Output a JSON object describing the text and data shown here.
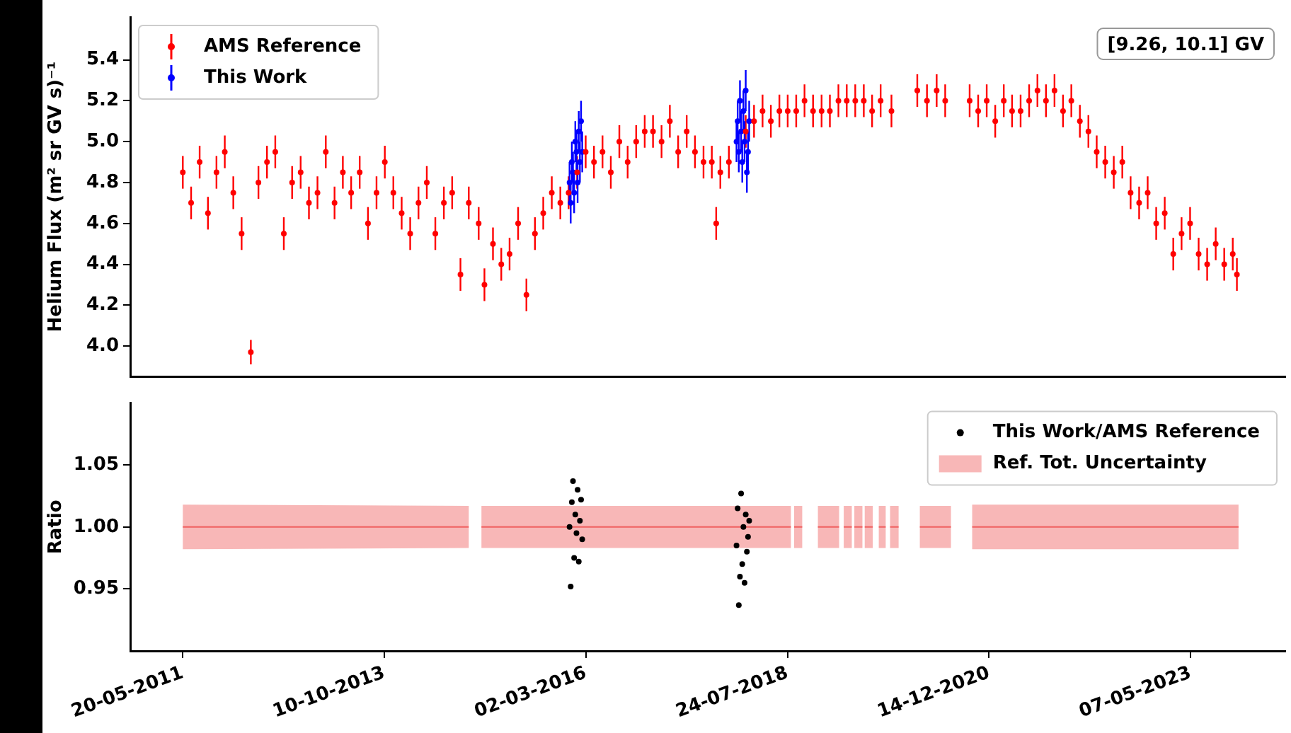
{
  "chart_data": [
    {
      "type": "scatter",
      "ylabel": "Helium Flux (m² sr GV s)⁻¹",
      "annotations": [
        "[9.26, 10.1] GV"
      ],
      "legend": "top left",
      "marker": "circle",
      "tick_labels": "y",
      "xlim": [
        "2010-10-04",
        "2024-06-21"
      ],
      "ylim": [
        3.85,
        5.61
      ],
      "yticks": [
        {
          "value": 4.0,
          "label": "4.0"
        },
        4.2,
        4.4,
        4.6,
        4.8,
        {
          "value": 5.0,
          "label": "5.0"
        },
        5.2,
        5.4
      ],
      "series": [
        {
          "name": "AMS Reference",
          "color": "#ff0000",
          "x": [
            "2011-05-20",
            "2011-06-25",
            "2011-08-01",
            "2011-09-06",
            "2011-10-13",
            "2011-11-18",
            "2011-12-25",
            "2012-01-30",
            "2012-03-10",
            "2012-04-12",
            "2012-05-19",
            "2012-06-24",
            "2012-07-31",
            "2012-09-05",
            "2012-10-12",
            "2012-11-17",
            "2012-12-24",
            "2013-01-29",
            "2013-03-08",
            "2013-04-13",
            "2013-05-19",
            "2013-06-25",
            "2013-07-31",
            "2013-09-06",
            "2013-10-12",
            "2013-11-18",
            "2013-12-24",
            "2014-01-30",
            "2014-03-07",
            "2014-04-12",
            "2014-05-19",
            "2014-06-25",
            "2014-07-31",
            "2014-09-05",
            "2014-10-11",
            "2014-11-01",
            "2014-11-23",
            "2014-12-18",
            "2015-01-24",
            "2015-03-01",
            "2015-04-06",
            "2015-05-13",
            "2015-06-18",
            "2015-07-25",
            "2015-08-30",
            "2015-10-06",
            "2015-11-12",
            "2015-12-18",
            "2016-01-24",
            "2016-03-01",
            "2016-04-06",
            "2016-05-13",
            "2016-06-18",
            "2016-07-25",
            "2016-08-30",
            "2016-10-06",
            "2016-11-12",
            "2016-12-18",
            "2017-01-24",
            "2017-03-01",
            "2017-04-06",
            "2017-05-13",
            "2017-06-18",
            "2017-07-25",
            "2017-08-30",
            "2017-09-18",
            "2017-10-06",
            "2017-11-12",
            "2017-12-18",
            "2018-01-24",
            "2018-03-01",
            "2018-04-07",
            "2018-05-13",
            "2018-06-19",
            "2018-07-25",
            "2018-08-31",
            "2018-10-06",
            "2018-11-12",
            "2018-12-19",
            "2019-01-24",
            "2019-03-02",
            "2019-04-07",
            "2019-05-14",
            "2019-06-20",
            "2019-07-26",
            "2019-09-01",
            "2019-10-18",
            "2019-12-01",
            "2020-02-07",
            "2020-03-20",
            "2020-05-01",
            "2020-06-07",
            "2020-08-01",
            "2020-09-21",
            "2020-10-28",
            "2020-12-04",
            "2021-01-10",
            "2021-02-16",
            "2021-03-24",
            "2021-04-30",
            "2021-06-06",
            "2021-07-12",
            "2021-08-18",
            "2021-09-24",
            "2021-10-31",
            "2021-12-06",
            "2022-01-12",
            "2022-02-18",
            "2022-03-26",
            "2022-05-02",
            "2022-06-08",
            "2022-07-15",
            "2022-08-20",
            "2022-09-26",
            "2022-11-02",
            "2022-12-09",
            "2023-01-15",
            "2023-02-21",
            "2023-03-29",
            "2023-05-05",
            "2023-06-11",
            "2023-07-18",
            "2023-08-24",
            "2023-09-30",
            "2023-11-06",
            "2023-11-24"
          ],
          "values": [
            4.85,
            4.7,
            4.9,
            4.65,
            4.85,
            4.95,
            4.75,
            4.55,
            3.97,
            4.8,
            4.9,
            4.95,
            4.55,
            4.8,
            4.85,
            4.7,
            4.75,
            4.95,
            4.7,
            4.85,
            4.75,
            4.85,
            4.6,
            4.75,
            4.9,
            4.75,
            4.65,
            4.55,
            4.7,
            4.8,
            4.55,
            4.7,
            4.75,
            4.35,
            4.7,
            null,
            4.6,
            4.3,
            4.5,
            4.4,
            4.45,
            4.6,
            4.25,
            4.55,
            4.65,
            4.75,
            4.7,
            4.75,
            4.85,
            4.95,
            4.9,
            4.95,
            4.85,
            5.0,
            4.9,
            5.0,
            5.05,
            5.05,
            5.0,
            5.1,
            4.95,
            5.05,
            4.95,
            4.9,
            4.9,
            4.6,
            4.85,
            4.9,
            null,
            5.05,
            5.1,
            5.15,
            5.1,
            5.15,
            5.15,
            5.15,
            5.2,
            5.15,
            5.15,
            5.15,
            5.2,
            5.2,
            5.2,
            5.2,
            5.15,
            5.2,
            5.15,
            null,
            5.25,
            5.2,
            5.25,
            5.2,
            null,
            5.2,
            5.15,
            5.2,
            5.1,
            5.2,
            5.15,
            5.15,
            5.2,
            5.25,
            5.2,
            5.25,
            5.15,
            5.2,
            5.1,
            5.05,
            4.95,
            4.9,
            4.85,
            4.9,
            4.75,
            4.7,
            4.75,
            4.6,
            4.65,
            4.45,
            4.55,
            4.6,
            4.45,
            4.4,
            4.5,
            4.4,
            4.45,
            4.35
          ],
          "errors": [
            0.08,
            0.08,
            0.08,
            0.08,
            0.08,
            0.08,
            0.08,
            0.08,
            0.06,
            0.08,
            0.08,
            0.08,
            0.08,
            0.08,
            0.08,
            0.08,
            0.08,
            0.08,
            0.08,
            0.08,
            0.08,
            0.08,
            0.08,
            0.08,
            0.08,
            0.08,
            0.08,
            0.08,
            0.08,
            0.08,
            0.08,
            0.08,
            0.08,
            0.08,
            0.08,
            null,
            0.08,
            0.08,
            0.08,
            0.08,
            0.08,
            0.08,
            0.08,
            0.08,
            0.08,
            0.08,
            0.08,
            0.08,
            0.08,
            0.08,
            0.08,
            0.08,
            0.08,
            0.08,
            0.08,
            0.08,
            0.08,
            0.08,
            0.08,
            0.08,
            0.08,
            0.08,
            0.08,
            0.08,
            0.08,
            0.08,
            0.08,
            0.08,
            null,
            0.08,
            0.08,
            0.08,
            0.08,
            0.08,
            0.08,
            0.08,
            0.08,
            0.08,
            0.08,
            0.08,
            0.08,
            0.08,
            0.08,
            0.08,
            0.08,
            0.08,
            0.08,
            null,
            0.08,
            0.08,
            0.08,
            0.08,
            null,
            0.08,
            0.08,
            0.08,
            0.08,
            0.08,
            0.08,
            0.08,
            0.08,
            0.08,
            0.08,
            0.08,
            0.08,
            0.08,
            0.08,
            0.08,
            0.08,
            0.08,
            0.08,
            0.08,
            0.08,
            0.08,
            0.08,
            0.08,
            0.08,
            0.08,
            0.08,
            0.08,
            0.08,
            0.08,
            0.08,
            0.08,
            0.08,
            0.08
          ]
        },
        {
          "name": "This Work",
          "color": "#0000ff",
          "x": [
            "2015-12-22",
            "2015-12-27",
            "2016-01-01",
            "2016-01-06",
            "2016-01-11",
            "2016-01-16",
            "2016-01-21",
            "2016-01-26",
            "2016-01-31",
            "2016-02-05",
            "2016-02-10",
            "2016-02-15",
            "2017-12-15",
            "2017-12-20",
            "2017-12-25",
            "2017-12-30",
            "2018-01-04",
            "2018-01-09",
            "2018-01-14",
            "2018-01-19",
            "2018-01-24",
            "2018-01-29",
            "2018-02-03",
            "2018-02-08"
          ],
          "values": [
            4.8,
            4.7,
            4.9,
            4.85,
            4.75,
            5.0,
            4.95,
            4.8,
            5.05,
            4.9,
            5.1,
            4.95,
            5.0,
            5.1,
            4.95,
            5.2,
            5.05,
            4.9,
            5.15,
            5.0,
            5.25,
            4.85,
            4.95,
            5.1
          ],
          "errors": [
            0.1,
            0.1,
            0.1,
            0.1,
            0.1,
            0.1,
            0.1,
            0.1,
            0.1,
            0.1,
            0.1,
            0.1,
            0.1,
            0.1,
            0.1,
            0.1,
            0.1,
            0.1,
            0.1,
            0.1,
            0.1,
            0.1,
            0.1,
            0.1
          ]
        }
      ]
    },
    {
      "type": "scatter",
      "ylabel": "Ratio",
      "legend": "top right",
      "marker": "circle",
      "xlim": [
        "2010-10-04",
        "2024-06-21"
      ],
      "xticks": [
        {
          "value": "2011-05-20",
          "label": "20-05-2011"
        },
        {
          "value": "2013-10-10",
          "label": "10-10-2013"
        },
        {
          "value": "2016-03-02",
          "label": "02-03-2016"
        },
        {
          "value": "2018-07-24",
          "label": "24-07-2018"
        },
        {
          "value": "2020-12-14",
          "label": "14-12-2020"
        },
        {
          "value": "2023-05-07",
          "label": "07-05-2023"
        }
      ],
      "ylim": [
        0.9,
        1.1
      ],
      "yticks": [
        0.95,
        {
          "value": 1.0,
          "label": "1.00"
        },
        1.05
      ],
      "series": [
        {
          "name": "This Work/AMS Reference",
          "color": "#000000",
          "x": [
            "2015-12-22",
            "2015-12-27",
            "2016-01-01",
            "2016-01-06",
            "2016-01-11",
            "2016-01-16",
            "2016-01-21",
            "2016-01-26",
            "2016-01-31",
            "2016-02-05",
            "2016-02-10",
            "2016-02-15",
            "2017-12-15",
            "2017-12-20",
            "2017-12-25",
            "2017-12-30",
            "2018-01-04",
            "2018-01-09",
            "2018-01-14",
            "2018-01-19",
            "2018-01-24",
            "2018-01-29",
            "2018-02-03",
            "2018-02-08"
          ],
          "values": [
            1.0,
            0.952,
            1.02,
            1.037,
            0.975,
            1.01,
            0.995,
            1.03,
            0.972,
            1.005,
            1.022,
            0.99,
            0.985,
            1.015,
            0.937,
            0.96,
            1.027,
            0.97,
            1.0,
            0.955,
            1.01,
            0.98,
            0.992,
            1.005
          ]
        },
        {
          "type": "line",
          "marker": "none",
          "name": "Ref. Tot. Uncertainty",
          "color": "#f06060",
          "x": [
            "2011-05-20",
            "2014-10-11",
            "2014-11-01",
            "2014-12-05",
            "2018-08-08",
            "2018-08-15",
            "2018-08-22",
            "2018-09-26",
            "2018-10-20",
            "2018-12-03",
            "2019-03-05",
            "2019-03-17",
            "2019-03-25",
            "2019-04-29",
            "2019-05-04",
            "2019-05-10",
            "2019-06-14",
            "2019-06-19",
            "2019-06-24",
            "2019-07-29",
            "2019-08-08",
            "2019-08-24",
            "2019-09-23",
            "2019-10-02",
            "2019-10-12",
            "2019-11-18",
            "2019-12-20",
            "2020-02-18",
            "2020-07-02",
            "2020-08-10",
            "2020-10-02",
            "2023-12-01"
          ],
          "values": [
            1.0,
            1.0,
            null,
            1.0,
            1.0,
            null,
            1.0,
            1.0,
            null,
            1.0,
            1.0,
            null,
            1.0,
            1.0,
            null,
            1.0,
            1.0,
            null,
            1.0,
            1.0,
            null,
            1.0,
            1.0,
            null,
            1.0,
            1.0,
            null,
            1.0,
            1.0,
            null,
            1.0,
            1.0
          ],
          "lower": [
            0.982,
            0.983,
            null,
            0.983,
            0.983,
            null,
            0.983,
            0.983,
            null,
            0.983,
            0.983,
            null,
            0.983,
            0.983,
            null,
            0.983,
            0.983,
            null,
            0.983,
            0.983,
            null,
            0.983,
            0.983,
            null,
            0.983,
            0.983,
            null,
            0.983,
            0.983,
            null,
            0.982,
            0.982
          ],
          "upper": [
            1.018,
            1.017,
            null,
            1.017,
            1.017,
            null,
            1.017,
            1.017,
            null,
            1.017,
            1.017,
            null,
            1.017,
            1.017,
            null,
            1.017,
            1.017,
            null,
            1.017,
            1.017,
            null,
            1.017,
            1.017,
            null,
            1.017,
            1.017,
            null,
            1.017,
            1.017,
            null,
            1.018,
            1.018
          ]
        }
      ]
    }
  ]
}
